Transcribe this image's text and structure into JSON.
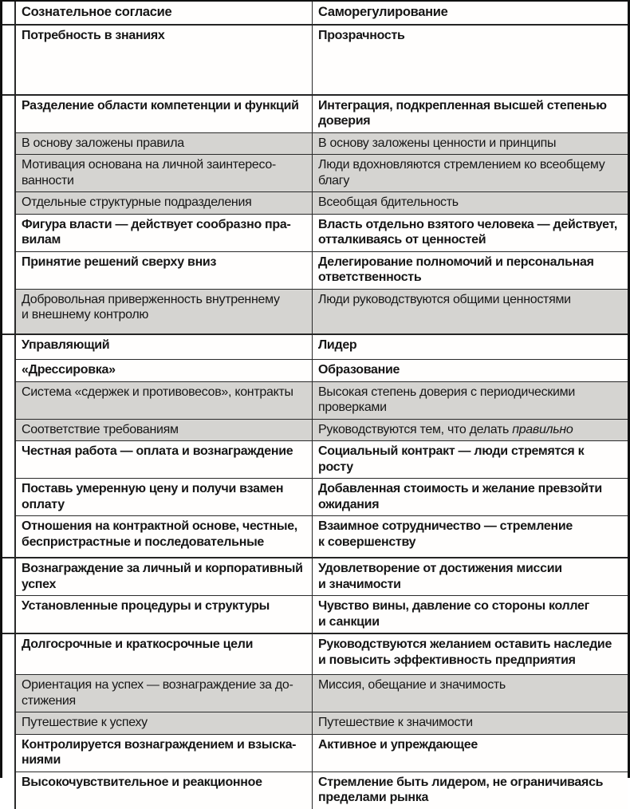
{
  "table": {
    "header": {
      "left": "Сознательное согласие",
      "right": "Саморегулирование"
    },
    "colors": {
      "gray_row": "#d5d4d1",
      "white_row": "#ffffff",
      "border": "#2a2a2a",
      "text": "#161616"
    },
    "groups": [
      {
        "rows": [
          {
            "shade": "white",
            "h": 86,
            "left": "Потребность в знаниях",
            "right": "Прозрачность"
          }
        ]
      },
      {
        "rows": [
          {
            "shade": "white",
            "h": 41,
            "left": "Разделение области компетенции и функций",
            "right": "Интеграция, подкрепленная высшей степенью\nдоверия"
          },
          {
            "shade": "gray",
            "h": 26,
            "left": "В основу заложены правила",
            "right": "В основу заложены ценности и принципы"
          },
          {
            "shade": "gray",
            "h": 41,
            "left": "Мотивация основана на личной заинтересо-\nванности",
            "right": "Люди вдохновляются стремлением ко всеобщему\nблагу"
          },
          {
            "shade": "gray",
            "h": 27,
            "left": "Отдельные структурные подразделения",
            "right": "Всеобщая бдительность"
          },
          {
            "shade": "white",
            "h": 40,
            "left": "Фигура власти — действует сообразно пра-\nвилам",
            "right": "Власть отдельно взятого человека — действует,\nотталкиваясь от ценностей"
          },
          {
            "shade": "white",
            "h": 39,
            "left": "Принятие решений сверху вниз",
            "right": "Делегирование полномочий и персональная\nответственность"
          },
          {
            "shade": "gray",
            "h": 56,
            "left": "Добровольная приверженность внутреннему\nи внешнему контролю",
            "right": "Люди руководствуются общими ценностями"
          }
        ]
      },
      {
        "rows": [
          {
            "shade": "white",
            "h": 30,
            "left": "Управляющий",
            "right": "Лидер"
          },
          {
            "shade": "white",
            "h": 28,
            "left": "«Дрессировка»",
            "right": "Образование"
          },
          {
            "shade": "gray",
            "h": 40,
            "left": "Система «сдержек и противовесов», контракты",
            "right": "Высокая степень доверия с периодическими\nпроверками"
          },
          {
            "shade": "gray",
            "h": 26,
            "left": "Соответствие требованиям",
            "right": [
              {
                "text": "Руководствуются тем, что делать "
              },
              {
                "text": "правильно",
                "italic": true
              }
            ]
          },
          {
            "shade": "white",
            "h": 33,
            "left": "Честная работа — оплата и вознаграждение",
            "right": "Социальный контракт — люди стремятся к росту"
          },
          {
            "shade": "white",
            "h": 42,
            "left": "Поставь умеренную цену и получи взамен\nоплату",
            "right": "Добавленная стоимость и желание превзойти\nожидания"
          },
          {
            "shade": "white",
            "h": 52,
            "left": "Отношения на контрактной основе, честные,\nбеспристрастные и последовательные",
            "right": "Взаимное сотрудничество — стремление\nк совершенству"
          }
        ]
      },
      {
        "rows": [
          {
            "shade": "white",
            "h": 43,
            "left": "Вознаграждение за личный и корпоративный\nуспех",
            "right": "Удовлетворение от достижения миссии\nи значимости"
          },
          {
            "shade": "white",
            "h": 46,
            "left": "Установленные процедуры и структуры",
            "right": "Чувство вины, давление со стороны коллег\nи санкции"
          }
        ]
      },
      {
        "rows": [
          {
            "shade": "white",
            "h": 50,
            "left": "Долгосрочные и краткосрочные цели",
            "right": "Руководствуются желанием оставить наследие\nи повысить эффективность предприятия"
          },
          {
            "shade": "gray",
            "h": 41,
            "left": "Ориентация на успех — вознаграждение за до-\nстижения",
            "right": "Миссия, обещание и значимость"
          },
          {
            "shade": "gray",
            "h": 27,
            "left": "Путешествие к успеху",
            "right": "Путешествие к значимости"
          },
          {
            "shade": "white",
            "h": 42,
            "left": "Контролируется вознаграждением и взыска-\nниями",
            "right": "Активное и упреждающее"
          },
          {
            "shade": "white",
            "h": 42,
            "left": "Высокочувствительное и реакционное",
            "right": "Стремление быть лидером, не ограничиваясь\nпределами рынка"
          }
        ]
      }
    ]
  }
}
